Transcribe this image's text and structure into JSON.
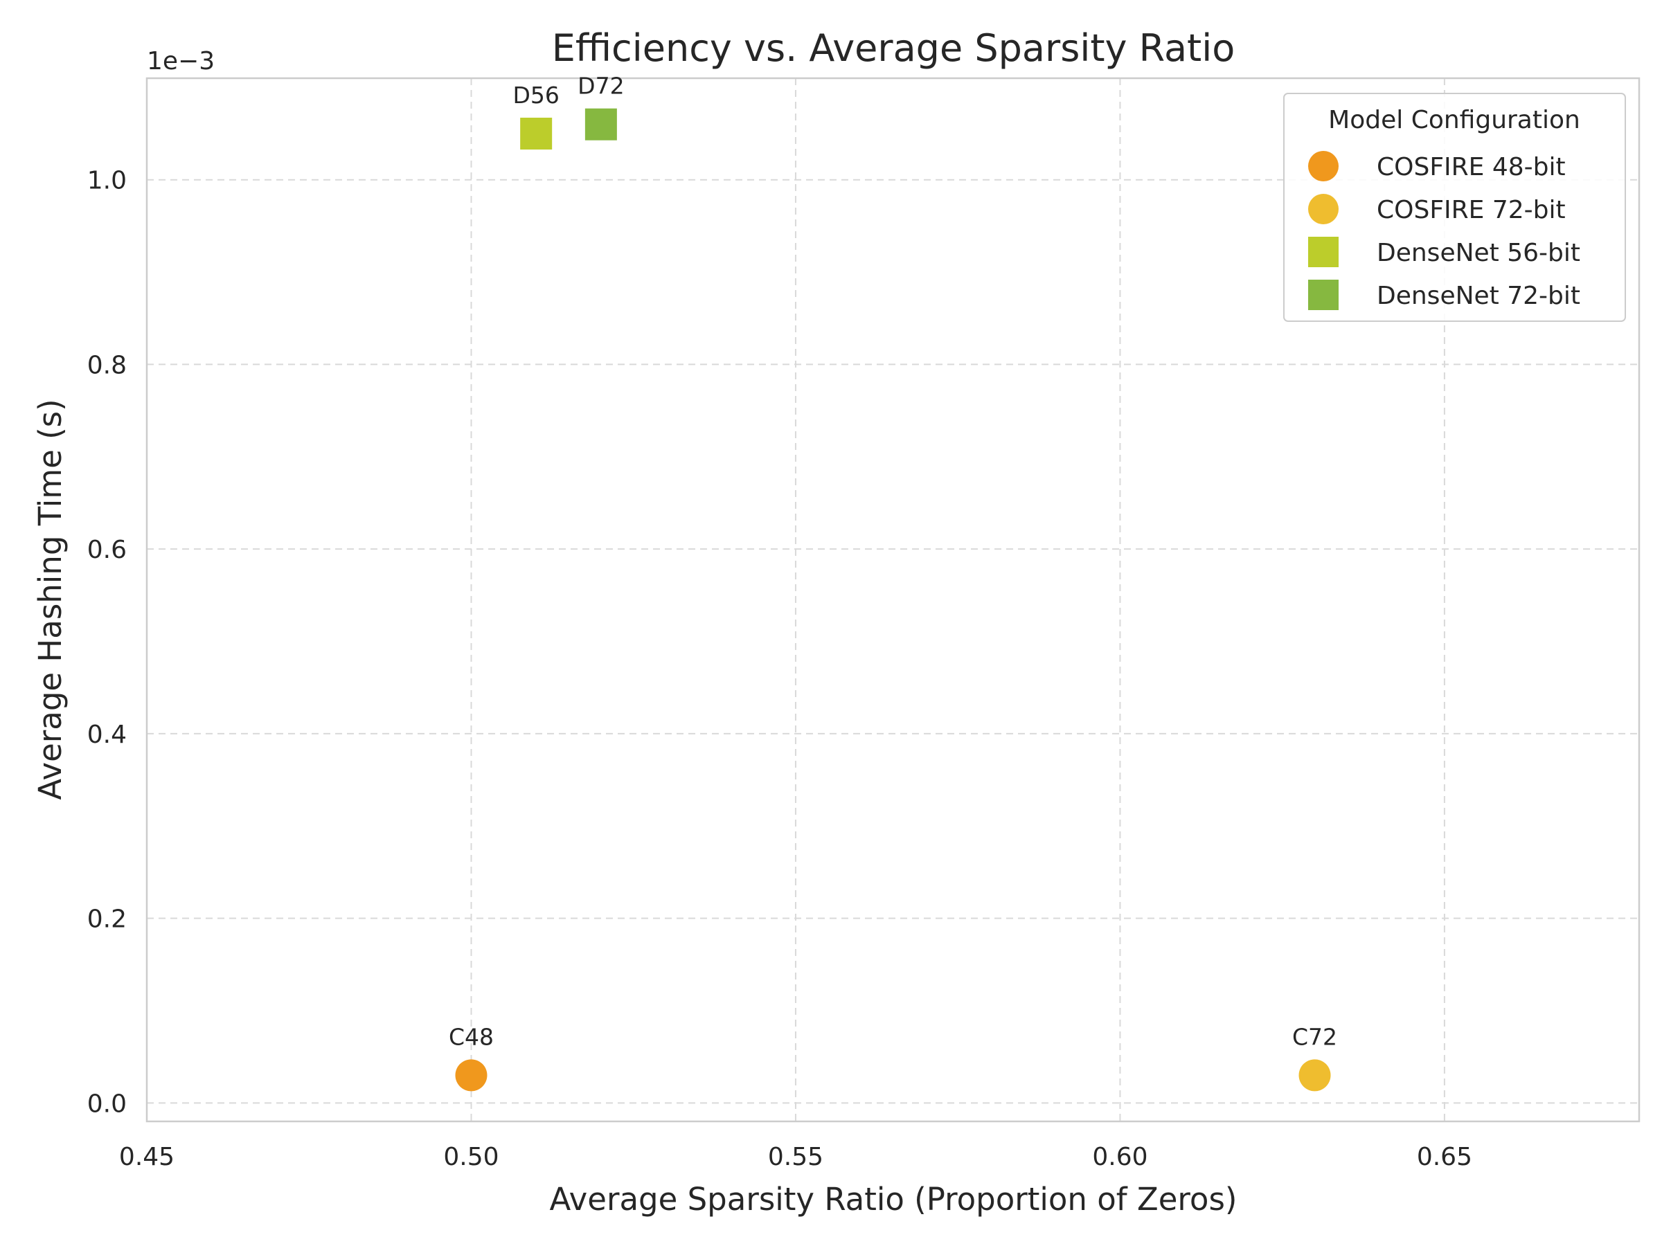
{
  "chart_data": {
    "type": "scatter",
    "title": "Efficiency vs. Average Sparsity Ratio",
    "xlabel": "Average Sparsity Ratio (Proportion of Zeros)",
    "ylabel": "Average Hashing Time (s)",
    "y_scale_note": "1e−3",
    "xlim": [
      0.45,
      0.68
    ],
    "ylim": [
      -2e-05,
      0.00111
    ],
    "x_ticks": [
      0.45,
      0.5,
      0.55,
      0.6,
      0.65
    ],
    "x_tick_labels": [
      "0.45",
      "0.50",
      "0.55",
      "0.60",
      "0.65"
    ],
    "y_ticks": [
      0.0,
      0.0002,
      0.0004,
      0.0006,
      0.0008,
      0.001
    ],
    "y_tick_labels": [
      "0.0",
      "0.2",
      "0.4",
      "0.6",
      "0.8",
      "1.0"
    ],
    "grid": true,
    "legend": {
      "title": "Model Configuration",
      "position": "top-right"
    },
    "series": [
      {
        "name": "COSFIRE 48-bit",
        "marker": "circle",
        "color": "#f0981d",
        "points": [
          {
            "x": 0.5,
            "y": 3e-05,
            "label": "C48"
          }
        ]
      },
      {
        "name": "COSFIRE 72-bit",
        "marker": "circle",
        "color": "#efbd2f",
        "points": [
          {
            "x": 0.63,
            "y": 3e-05,
            "label": "C72"
          }
        ]
      },
      {
        "name": "DenseNet 56-bit",
        "marker": "square",
        "color": "#bccd2b",
        "points": [
          {
            "x": 0.51,
            "y": 0.00105,
            "label": "D56"
          }
        ]
      },
      {
        "name": "DenseNet 72-bit",
        "marker": "square",
        "color": "#86b840",
        "points": [
          {
            "x": 0.52,
            "y": 0.00106,
            "label": "D72"
          }
        ]
      }
    ]
  }
}
